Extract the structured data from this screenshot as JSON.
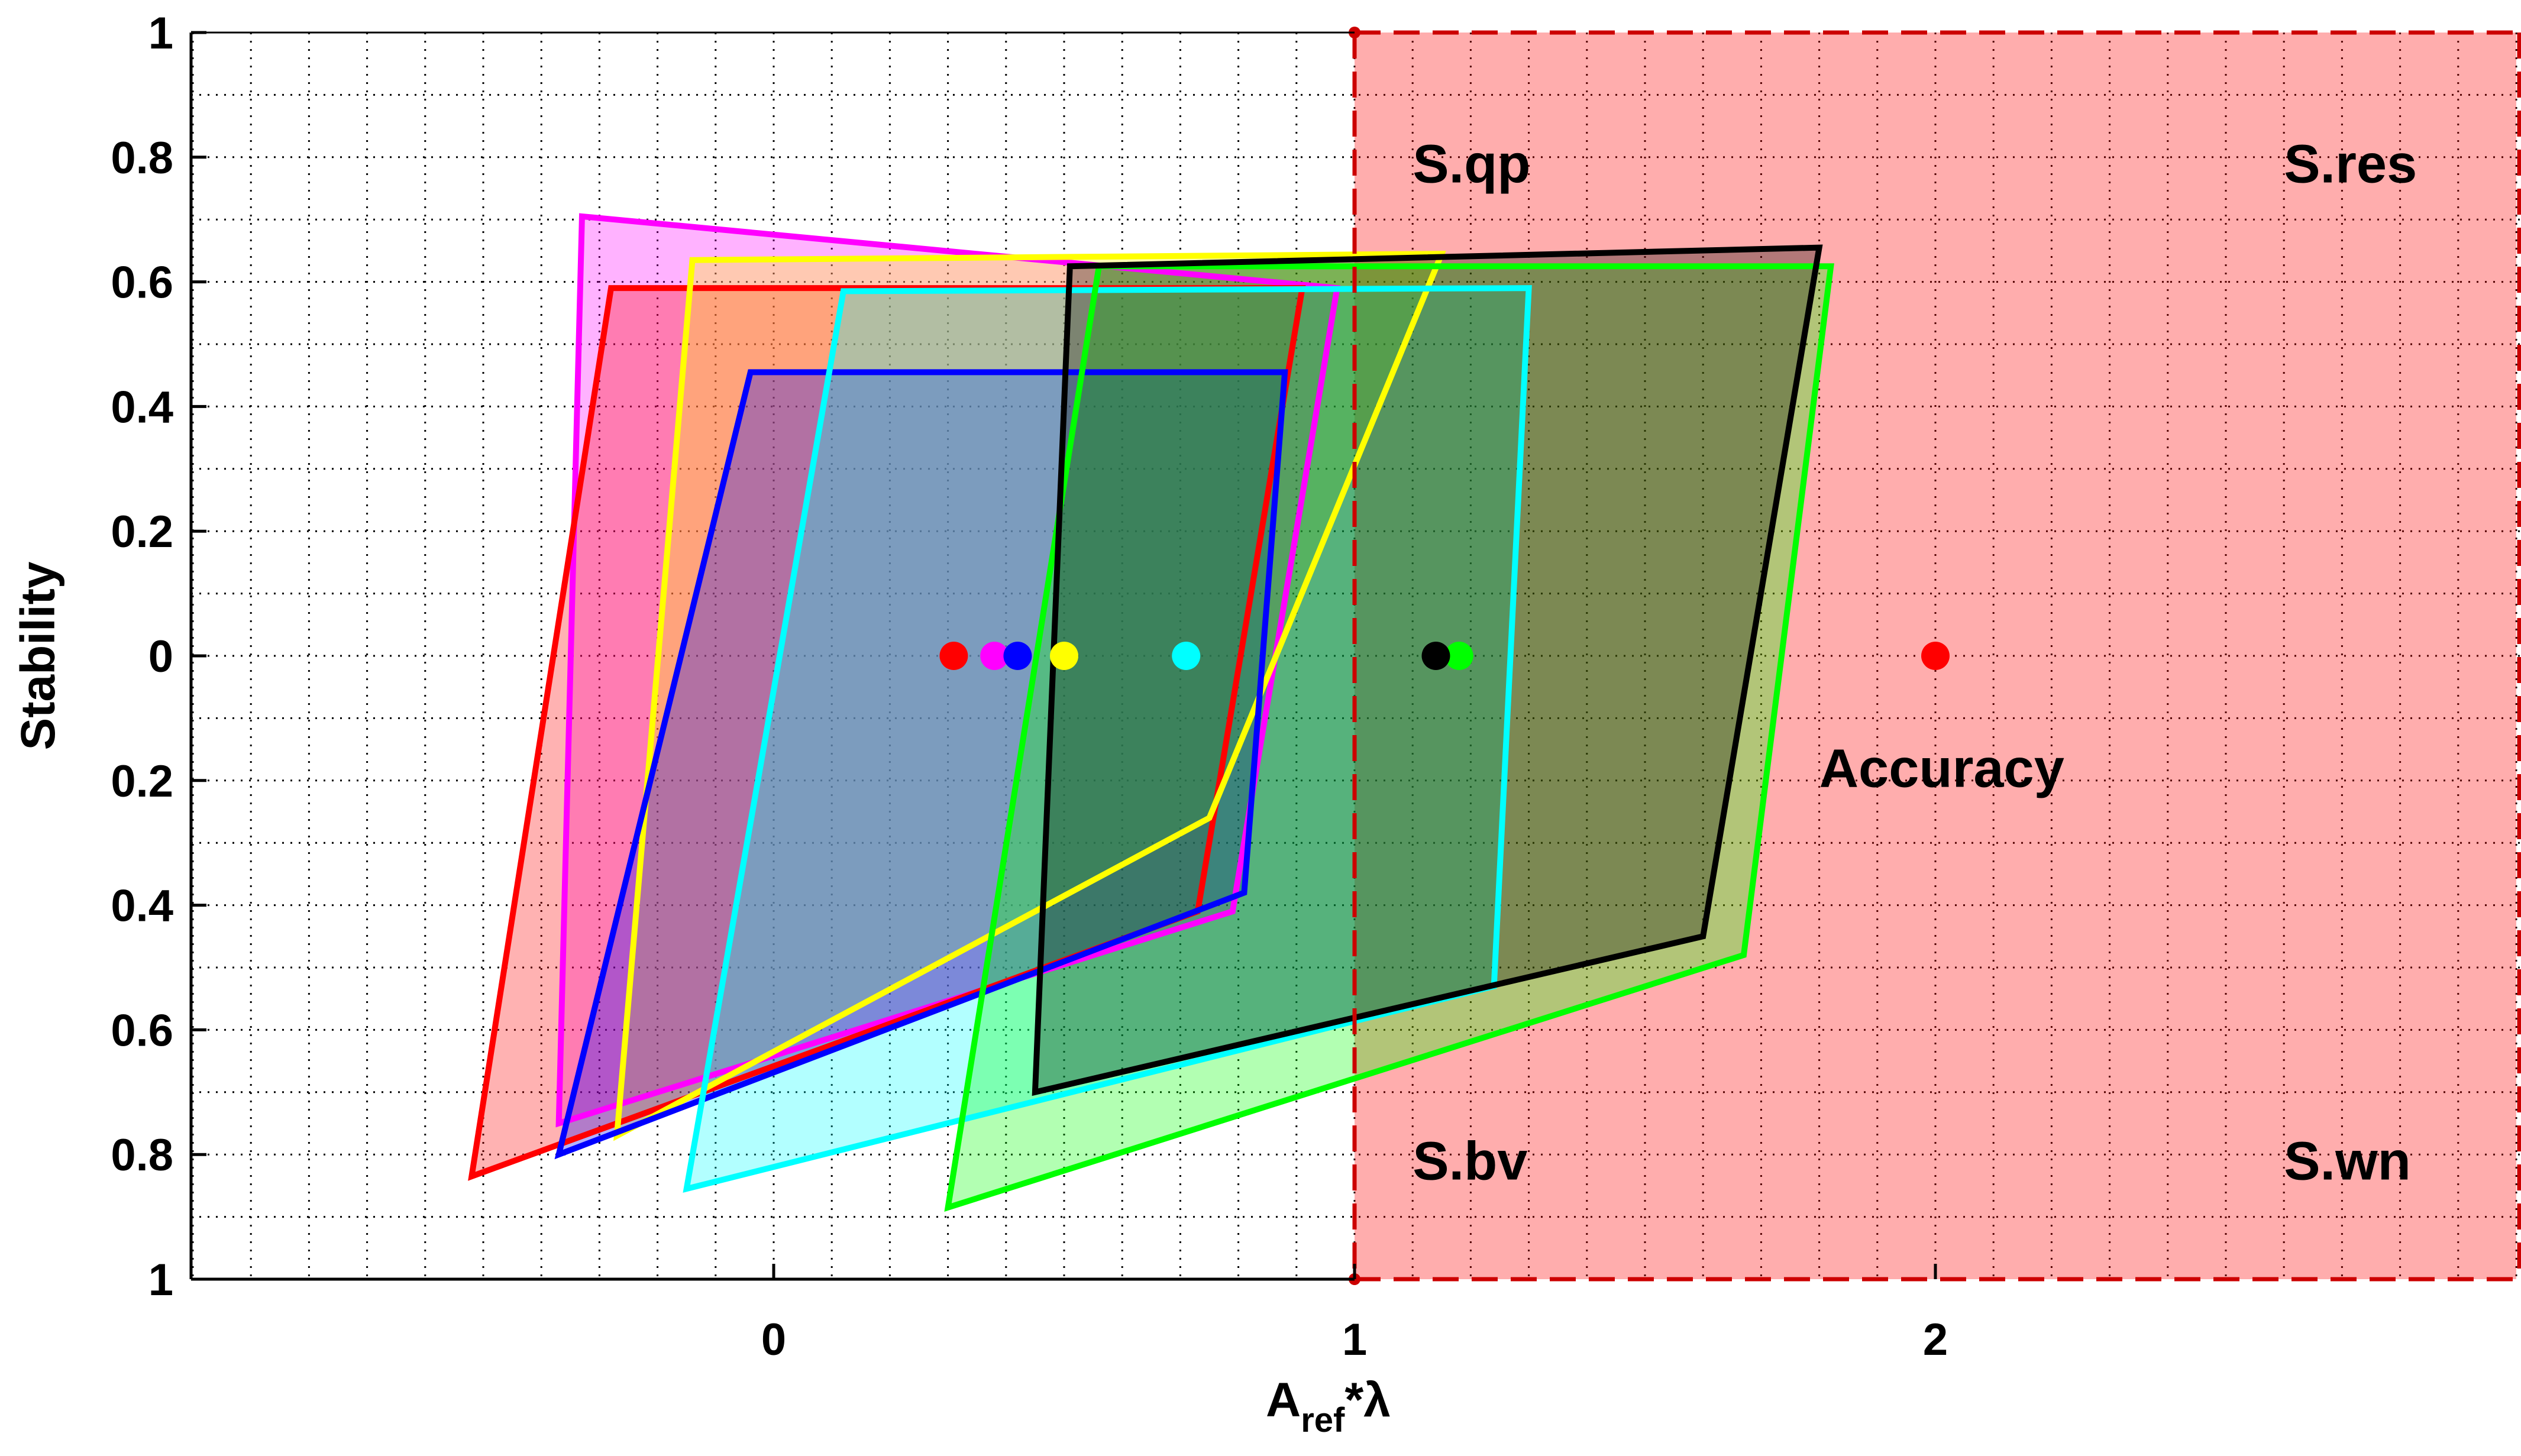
{
  "chart_data": {
    "type": "area",
    "title": "",
    "xlabel": {
      "base": "A",
      "sub": "ref",
      "rest": "*λ"
    },
    "ylabel": "Stability",
    "xlim": [
      -1,
      3
    ],
    "ylim": [
      -1,
      1
    ],
    "grid": true,
    "x_ticks": [
      {
        "value": 0,
        "label": "0"
      },
      {
        "value": 1,
        "label": "1"
      },
      {
        "value": 2,
        "label": "2"
      }
    ],
    "y_ticks": [
      {
        "value": 1,
        "label": "1"
      },
      {
        "value": 0.8,
        "label": "0.8"
      },
      {
        "value": 0.6,
        "label": "0.6"
      },
      {
        "value": 0.4,
        "label": "0.4"
      },
      {
        "value": 0.2,
        "label": "0.2"
      },
      {
        "value": 0,
        "label": "0"
      },
      {
        "value": -0.2,
        "label": "0.2"
      },
      {
        "value": -0.4,
        "label": "0.4"
      },
      {
        "value": -0.6,
        "label": "0.6"
      },
      {
        "value": -0.8,
        "label": "0.8"
      },
      {
        "value": -1,
        "label": "1"
      }
    ],
    "shaded_region": {
      "x_from": 1,
      "x_to": 3,
      "color": "#ff0000",
      "boundary_color": "#cc0000"
    },
    "region_labels": [
      {
        "text": "S.qp",
        "x": 1.1,
        "y": 0.79
      },
      {
        "text": "S.res",
        "x": 2.6,
        "y": 0.79
      },
      {
        "text": "S.bv",
        "x": 1.1,
        "y": -0.81
      },
      {
        "text": "S.wn",
        "x": 2.6,
        "y": -0.81
      },
      {
        "text": "Accuracy",
        "x": 1.8,
        "y": -0.18
      }
    ],
    "series": [
      {
        "color": "#ff00ff",
        "fill_opacity": 0.3,
        "polygon": [
          [
            -0.33,
            0.705
          ],
          [
            0.97,
            0.59
          ],
          [
            0.79,
            -0.41
          ],
          [
            -0.37,
            -0.75
          ]
        ],
        "center": [
          0.38,
          0
        ]
      },
      {
        "color": "#ff0000",
        "fill_opacity": 0.3,
        "polygon": [
          [
            -0.28,
            0.59
          ],
          [
            0.91,
            0.59
          ],
          [
            0.73,
            -0.41
          ],
          [
            -0.52,
            -0.835
          ]
        ],
        "center": [
          0.31,
          0
        ]
      },
      {
        "color": "#ffff00",
        "fill_opacity": 0.3,
        "polygon": [
          [
            -0.14,
            0.635
          ],
          [
            1.15,
            0.645
          ],
          [
            0.75,
            -0.26
          ],
          [
            -0.27,
            -0.77
          ]
        ],
        "center": [
          0.5,
          0
        ]
      },
      {
        "color": "#0000ff",
        "fill_opacity": 0.3,
        "polygon": [
          [
            -0.04,
            0.455
          ],
          [
            0.88,
            0.455
          ],
          [
            0.81,
            -0.38
          ],
          [
            -0.37,
            -0.8
          ]
        ],
        "center": [
          0.42,
          0
        ]
      },
      {
        "color": "#00ffff",
        "fill_opacity": 0.3,
        "polygon": [
          [
            0.12,
            0.585
          ],
          [
            1.3,
            0.59
          ],
          [
            1.24,
            -0.53
          ],
          [
            -0.15,
            -0.855
          ]
        ],
        "center": [
          0.71,
          0
        ]
      },
      {
        "color": "#00ff00",
        "fill_opacity": 0.3,
        "polygon": [
          [
            0.56,
            0.625
          ],
          [
            1.82,
            0.625
          ],
          [
            1.67,
            -0.48
          ],
          [
            0.3,
            -0.885
          ]
        ],
        "center": [
          1.18,
          0
        ]
      },
      {
        "color": "#000000",
        "fill_opacity": 0.3,
        "polygon": [
          [
            0.51,
            0.625
          ],
          [
            1.8,
            0.655
          ],
          [
            1.6,
            -0.45
          ],
          [
            0.45,
            -0.7
          ]
        ],
        "center": [
          1.14,
          0
        ]
      }
    ],
    "extra_points": [
      {
        "x": 2,
        "y": 0,
        "color": "#ff0000"
      }
    ]
  }
}
